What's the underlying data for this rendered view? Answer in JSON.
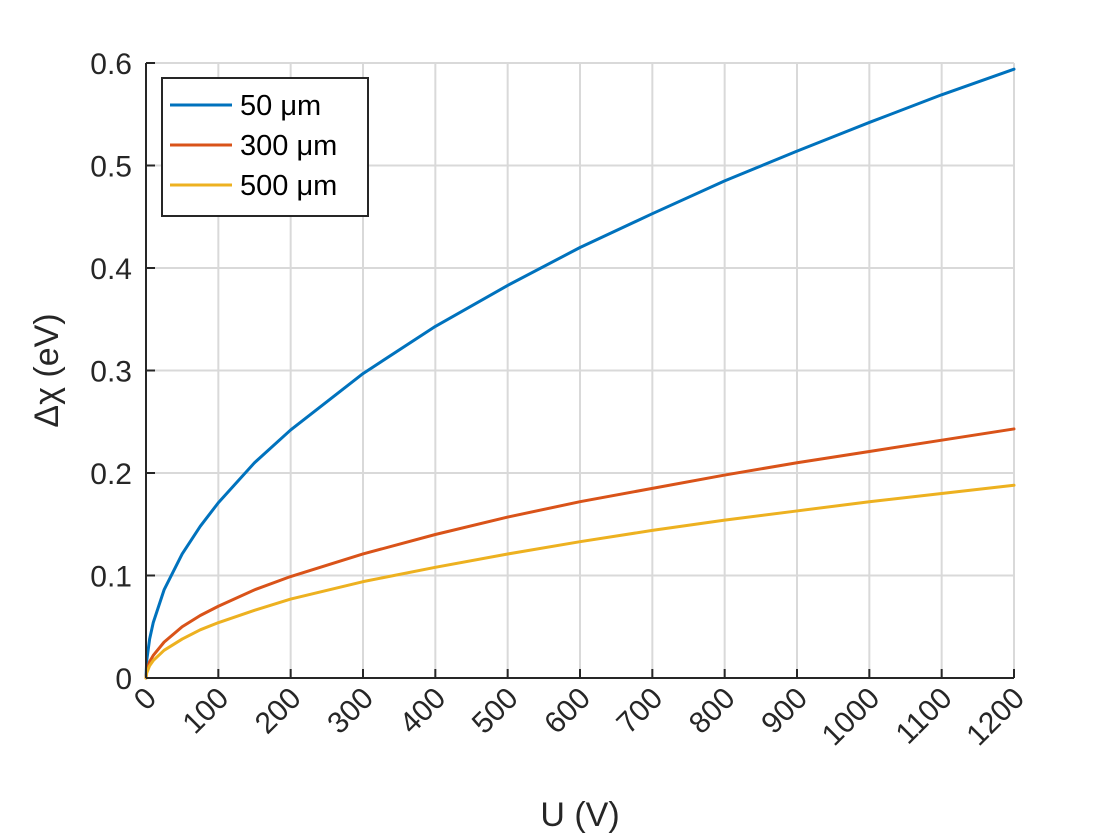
{
  "chart_data": {
    "type": "line",
    "title": "",
    "xlabel": "U (V)",
    "ylabel": "Δχ (eV)",
    "xlim": [
      0,
      1200
    ],
    "ylim": [
      0,
      0.6
    ],
    "xticks": [
      0,
      100,
      200,
      300,
      400,
      500,
      600,
      700,
      800,
      900,
      1000,
      1100,
      1200
    ],
    "yticks": [
      0,
      0.1,
      0.2,
      0.3,
      0.4,
      0.5,
      0.6
    ],
    "xtick_labels": [
      "0",
      "100",
      "200",
      "300",
      "400",
      "500",
      "600",
      "700",
      "800",
      "900",
      "1000",
      "1100",
      "1200"
    ],
    "ytick_labels": [
      "0",
      "0.1",
      "0.2",
      "0.3",
      "0.4",
      "0.5",
      "0.6"
    ],
    "grid": true,
    "legend_position": "top-left",
    "x": [
      0,
      1,
      5,
      10,
      25,
      50,
      75,
      100,
      150,
      200,
      300,
      400,
      500,
      600,
      700,
      800,
      900,
      1000,
      1100,
      1200
    ],
    "series": [
      {
        "name": "50 μm",
        "color": "#0072BD",
        "values": [
          0,
          0.017,
          0.038,
          0.054,
          0.086,
          0.121,
          0.148,
          0.171,
          0.21,
          0.242,
          0.297,
          0.343,
          0.383,
          0.42,
          0.453,
          0.485,
          0.514,
          0.542,
          0.569,
          0.594
        ]
      },
      {
        "name": "300 μm",
        "color": "#D95319",
        "values": [
          0,
          0.007,
          0.016,
          0.022,
          0.035,
          0.05,
          0.061,
          0.07,
          0.086,
          0.099,
          0.121,
          0.14,
          0.157,
          0.172,
          0.185,
          0.198,
          0.21,
          0.221,
          0.232,
          0.243
        ]
      },
      {
        "name": "500 μm",
        "color": "#EDB120",
        "values": [
          0,
          0.005,
          0.012,
          0.017,
          0.027,
          0.038,
          0.047,
          0.054,
          0.066,
          0.077,
          0.094,
          0.108,
          0.121,
          0.133,
          0.144,
          0.154,
          0.163,
          0.172,
          0.18,
          0.188
        ]
      }
    ]
  }
}
